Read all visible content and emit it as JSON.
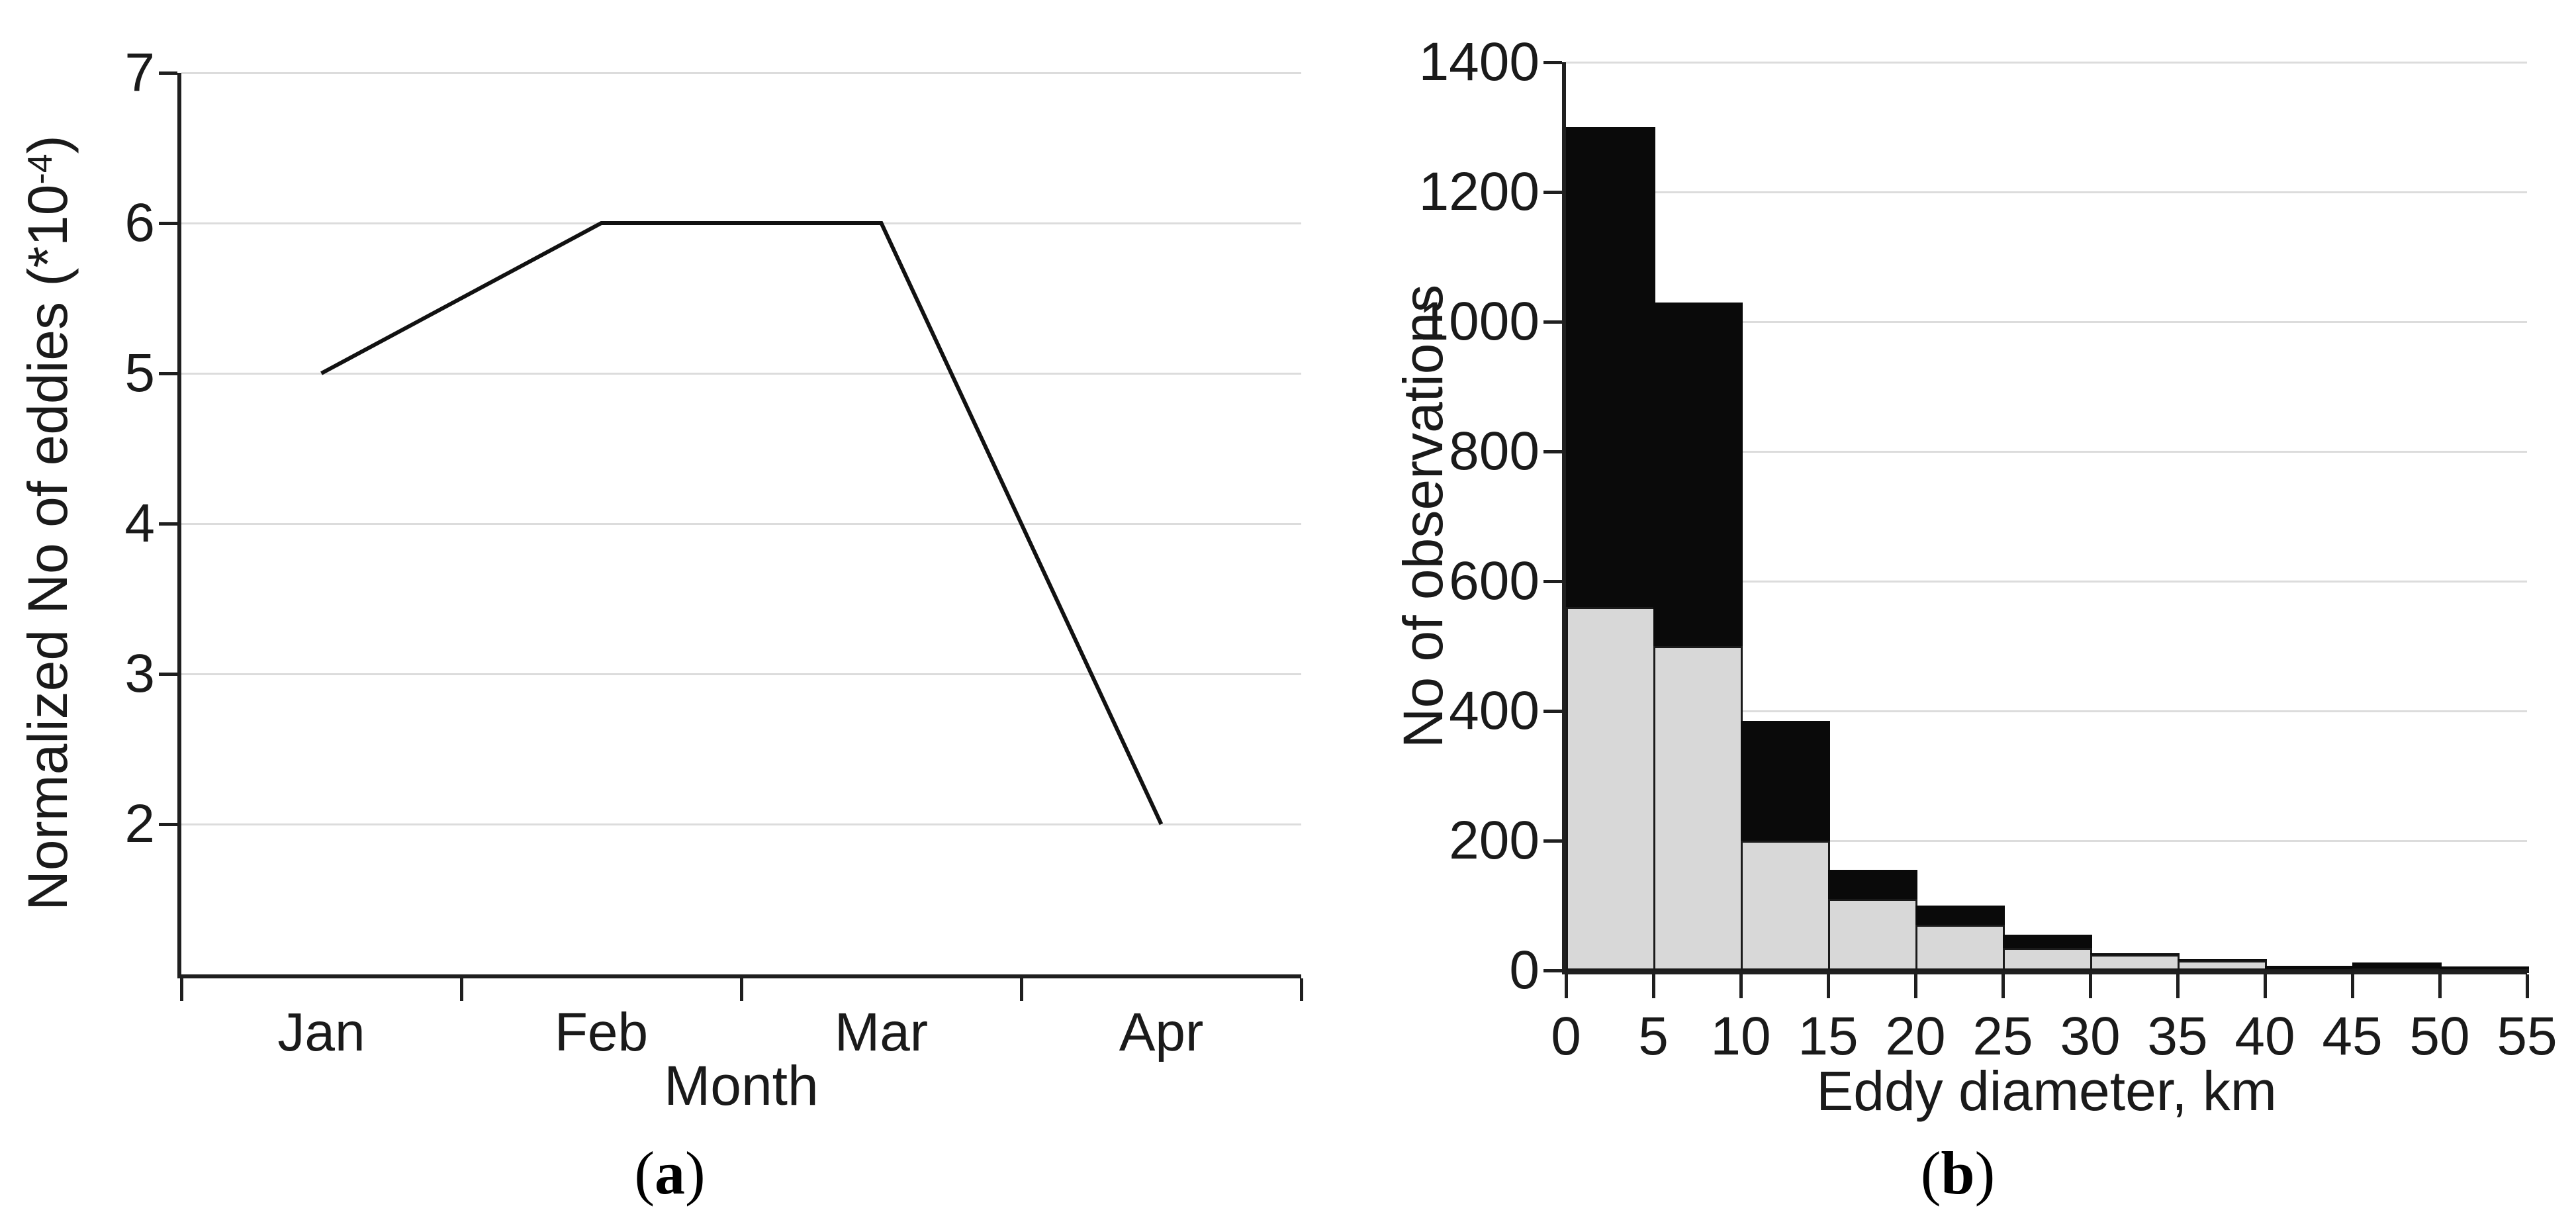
{
  "colors": {
    "axis": "#1f1f1f",
    "grid": "#dcdcdc",
    "text": "#1a1a1a",
    "line": "#111111",
    "bar_gray": "#d8d8d8",
    "bar_black": "#0a0a0a",
    "bar_outline": "#1a1a1a",
    "background": "#ffffff"
  },
  "panels": [
    {
      "id": "a",
      "caption": {
        "open": "(",
        "letter": "a",
        "close": ")"
      },
      "xlabel": "Month",
      "ylabel": "Normalized No of eddies (*10-4)",
      "ylabel_parts": {
        "pre": "Normalized No of eddies (*10",
        "sup": "-4",
        "post": ")"
      }
    },
    {
      "id": "b",
      "caption": {
        "open": "(",
        "letter": "b",
        "close": ")"
      },
      "xlabel": "Eddy diameter, km",
      "ylabel": "No of observations"
    }
  ],
  "chart_data": [
    {
      "panel": "a",
      "type": "line",
      "title": "",
      "categories": [
        "Jan",
        "Feb",
        "Mar",
        "Apr"
      ],
      "values": [
        5,
        6,
        6,
        2
      ],
      "xlabel": "Month",
      "ylabel": "Normalized No of eddies (*10^-4)",
      "ylim": [
        1,
        7
      ],
      "yticks": [
        2,
        3,
        4,
        5,
        6,
        7
      ],
      "grid": true,
      "legend_position": "none"
    },
    {
      "panel": "b",
      "type": "bar",
      "stacked": true,
      "title": "",
      "bin_edges": [
        0,
        5,
        10,
        15,
        20,
        25,
        30,
        35,
        40,
        45,
        50,
        55
      ],
      "categories": [
        "0-5",
        "5-10",
        "10-15",
        "15-20",
        "20-25",
        "25-30",
        "30-35",
        "35-40",
        "40-45",
        "45-50",
        "50-55"
      ],
      "series": [
        {
          "name": "lower-gray-segment",
          "color": "#d8d8d8",
          "values": [
            560,
            500,
            200,
            110,
            70,
            35,
            25,
            15,
            2,
            3,
            2
          ]
        },
        {
          "name": "upper-black-segment",
          "color": "#0a0a0a",
          "values": [
            740,
            530,
            185,
            45,
            30,
            20,
            2,
            2,
            5,
            9,
            4
          ]
        }
      ],
      "totals": [
        1300,
        1030,
        385,
        155,
        100,
        55,
        27,
        17,
        7,
        12,
        6
      ],
      "xlabel": "Eddy diameter, km",
      "ylabel": "No of observations",
      "ylim": [
        0,
        1400
      ],
      "yticks": [
        0,
        200,
        400,
        600,
        800,
        1000,
        1200,
        1400
      ],
      "xticks": [
        0,
        5,
        10,
        15,
        20,
        25,
        30,
        35,
        40,
        45,
        50,
        55
      ],
      "grid": true,
      "legend_position": "none"
    }
  ]
}
